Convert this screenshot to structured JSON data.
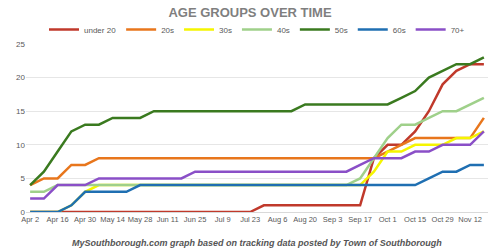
{
  "chart_data": {
    "type": "line",
    "title": "AGE GROUPS OVER TIME",
    "annotations": [
      "MySouthborough.com graph based on tracking data posted by Town of Southborough"
    ],
    "categories": [
      "Apr 2",
      null,
      "Apr 16",
      null,
      "Apr 30",
      null,
      "May 14",
      null,
      "May 28",
      null,
      "Jun 11",
      null,
      "Jun 25",
      null,
      "Jul 9",
      null,
      "Jul 23",
      null,
      "Aug 6",
      null,
      "Aug 20",
      null,
      "Sep 3",
      null,
      "Sep 17",
      null,
      "Oct 1",
      null,
      "Oct 15",
      null,
      "Oct 29",
      null,
      "Nov 12",
      null
    ],
    "series": [
      {
        "name": "under 20",
        "color": "#c0392b",
        "values": [
          0,
          0,
          0,
          0,
          0,
          0,
          0,
          0,
          0,
          0,
          0,
          0,
          0,
          0,
          0,
          0,
          0,
          1,
          1,
          1,
          1,
          1,
          1,
          1,
          1,
          8,
          10,
          10,
          12,
          15,
          19,
          21,
          22,
          22
        ]
      },
      {
        "name": "20s",
        "color": "#e8761c",
        "values": [
          4,
          5,
          5,
          7,
          7,
          8,
          8,
          8,
          8,
          8,
          8,
          8,
          8,
          8,
          8,
          8,
          8,
          8,
          8,
          8,
          8,
          8,
          8,
          8,
          8,
          8,
          9,
          10,
          11,
          11,
          11,
          11,
          11,
          14
        ]
      },
      {
        "name": "30s",
        "color": "#f5f500",
        "values": [
          0,
          0,
          0,
          1,
          3,
          4,
          4,
          4,
          4,
          4,
          4,
          4,
          4,
          4,
          4,
          4,
          4,
          4,
          4,
          4,
          4,
          4,
          4,
          4,
          4,
          6,
          9,
          9,
          10,
          10,
          10,
          11,
          11,
          12
        ]
      },
      {
        "name": "40s",
        "color": "#9fd08a",
        "values": [
          3,
          3,
          4,
          4,
          4,
          4,
          4,
          4,
          4,
          4,
          4,
          4,
          4,
          4,
          4,
          4,
          4,
          4,
          4,
          4,
          4,
          4,
          4,
          4,
          5,
          8,
          11,
          13,
          13,
          14,
          15,
          15,
          16,
          17
        ]
      },
      {
        "name": "50s",
        "color": "#3a7a1f",
        "values": [
          4,
          6,
          9,
          12,
          13,
          13,
          14,
          14,
          14,
          15,
          15,
          15,
          15,
          15,
          15,
          15,
          15,
          15,
          15,
          15,
          16,
          16,
          16,
          16,
          16,
          16,
          16,
          17,
          18,
          20,
          21,
          22,
          22,
          23
        ]
      },
      {
        "name": "60s",
        "color": "#1f6fb2",
        "values": [
          0,
          0,
          0,
          1,
          3,
          3,
          3,
          3,
          4,
          4,
          4,
          4,
          4,
          4,
          4,
          4,
          4,
          4,
          4,
          4,
          4,
          4,
          4,
          4,
          4,
          4,
          4,
          4,
          4,
          5,
          6,
          6,
          7,
          7
        ]
      },
      {
        "name": "70+",
        "color": "#8a4fc7",
        "values": [
          2,
          2,
          4,
          4,
          4,
          5,
          5,
          5,
          5,
          5,
          5,
          5,
          6,
          6,
          6,
          6,
          6,
          6,
          6,
          6,
          6,
          6,
          6,
          6,
          7,
          8,
          8,
          8,
          9,
          9,
          10,
          10,
          10,
          12
        ]
      }
    ],
    "ylim": [
      0,
      25
    ],
    "yticks": [
      0,
      5,
      10,
      15,
      20,
      25
    ],
    "grid": true,
    "legend": "top"
  }
}
